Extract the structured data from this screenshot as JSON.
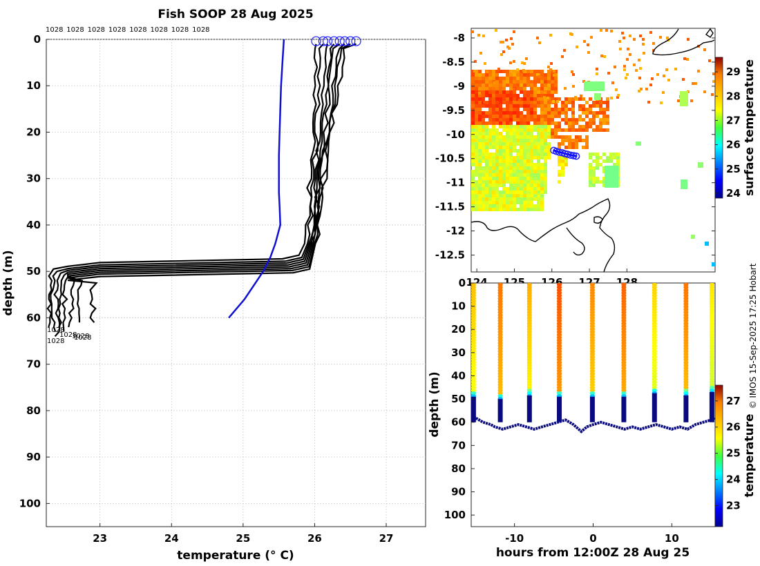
{
  "chart_data": [
    {
      "type": "line",
      "title": "Fish SOOP 28 Aug 2025",
      "xlabel": "temperature (° C)",
      "ylabel": "depth (m)",
      "xlim": [
        22.25,
        27.55
      ],
      "ylim": [
        105,
        0
      ],
      "xticks": [
        23,
        24,
        25,
        26,
        27
      ],
      "yticks": [
        0,
        10,
        20,
        30,
        40,
        50,
        60,
        70,
        80,
        90,
        100
      ],
      "id_label": "1028",
      "id_label_count": 8,
      "bottom_labels": [
        "1028",
        "1028",
        "1028",
        "1028",
        "1028"
      ],
      "climatology_color": "#1010d0",
      "profile_color": "#000000",
      "climatology": {
        "name": "climatology",
        "points": [
          [
            25.57,
            0
          ],
          [
            25.55,
            5
          ],
          [
            25.53,
            10
          ],
          [
            25.52,
            15
          ],
          [
            25.51,
            20
          ],
          [
            25.5,
            25
          ],
          [
            25.5,
            30
          ],
          [
            25.5,
            33
          ],
          [
            25.51,
            36
          ],
          [
            25.52,
            40
          ],
          [
            25.45,
            44
          ],
          [
            25.38,
            47
          ],
          [
            25.28,
            50
          ],
          [
            25.15,
            53
          ],
          [
            25.02,
            56
          ],
          [
            24.8,
            60
          ]
        ]
      },
      "profiles": [
        {
          "name": "p1",
          "surface": 26.02,
          "top": 26.02,
          "t20": 25.98,
          "t40": 25.9,
          "bend": 47.3,
          "bot": 22.3,
          "end": 62
        },
        {
          "name": "p2",
          "surface": 26.12,
          "top": 26.1,
          "t20": 26.02,
          "t40": 25.94,
          "bend": 47.8,
          "bot": 22.35,
          "end": 63
        },
        {
          "name": "p3",
          "surface": 26.18,
          "top": 26.16,
          "t20": 26.06,
          "t40": 25.96,
          "bend": 48.2,
          "bot": 22.4,
          "end": 64
        },
        {
          "name": "p4",
          "surface": 26.27,
          "top": 26.24,
          "t20": 26.1,
          "t40": 25.98,
          "bend": 48.6,
          "bot": 22.45,
          "end": 62.5
        },
        {
          "name": "p5",
          "surface": 26.35,
          "top": 26.3,
          "t20": 26.14,
          "t40": 26.0,
          "bend": 49.0,
          "bot": 22.5,
          "end": 63.5
        },
        {
          "name": "p6",
          "surface": 26.42,
          "top": 26.35,
          "t20": 26.18,
          "t40": 26.02,
          "bend": 49.4,
          "bot": 22.6,
          "end": 62
        },
        {
          "name": "p7",
          "surface": 26.5,
          "top": 26.4,
          "t20": 26.2,
          "t40": 26.04,
          "bend": 49.8,
          "bot": 22.7,
          "end": 61.5
        },
        {
          "name": "p8",
          "surface": 26.58,
          "top": 26.45,
          "t20": 26.22,
          "t40": 26.05,
          "bend": 50.3,
          "bot": 22.9,
          "end": 61
        }
      ]
    },
    {
      "type": "heatmap",
      "title": "",
      "xlim": [
        123.85,
        130.35
      ],
      "ylim": [
        -12.85,
        -7.8
      ],
      "xticks": [
        124,
        125,
        126,
        127,
        128
      ],
      "yticks": [
        -8,
        -8.5,
        -9,
        -9.5,
        -10,
        -10.5,
        -11,
        -11.5,
        -12,
        -12.5
      ],
      "colorbar_label": "surface temperature",
      "colorbar_range": [
        23.8,
        29.6
      ],
      "colorbar_ticks": [
        24,
        25,
        26,
        27,
        28,
        29
      ],
      "track": [
        [
          126.05,
          -10.33
        ],
        [
          126.12,
          -10.35
        ],
        [
          126.2,
          -10.37
        ],
        [
          126.28,
          -10.38
        ],
        [
          126.35,
          -10.4
        ],
        [
          126.42,
          -10.41
        ],
        [
          126.5,
          -10.43
        ],
        [
          126.58,
          -10.44
        ],
        [
          126.65,
          -10.45
        ]
      ]
    },
    {
      "type": "scatter",
      "title": "",
      "xlabel": "hours from 12:00Z 28 Aug 25",
      "ylabel": "depth (m)",
      "xlim": [
        -15.5,
        15.5
      ],
      "ylim": [
        105,
        0
      ],
      "xticks": [
        -10,
        0,
        10
      ],
      "yticks": [
        0,
        10,
        20,
        30,
        40,
        50,
        60,
        70,
        80,
        90,
        100
      ],
      "colorbar_label": "temperature",
      "colorbar_range": [
        22.2,
        27.6
      ],
      "colorbar_ticks": [
        23,
        24,
        25,
        26,
        27
      ],
      "casts": [
        -15.2,
        -11.8,
        -8.1,
        -4.3,
        -0.1,
        3.9,
        7.8,
        11.8,
        15.1
      ],
      "cast_top_temps": [
        25.9,
        26.3,
        26.0,
        26.5,
        26.2,
        26.4,
        25.8,
        26.3,
        25.7
      ],
      "cast_bottom_depth": [
        49,
        50,
        48.5,
        49,
        49,
        49,
        47.5,
        48.5,
        47
      ],
      "bottom_line": [
        [
          -15.5,
          57
        ],
        [
          -15,
          58
        ],
        [
          -14,
          60
        ],
        [
          -13,
          61
        ],
        [
          -12.5,
          62
        ],
        [
          -11.5,
          63
        ],
        [
          -10.5,
          62
        ],
        [
          -9.5,
          61
        ],
        [
          -8.5,
          62
        ],
        [
          -7.5,
          63
        ],
        [
          -6.5,
          62
        ],
        [
          -5.5,
          61
        ],
        [
          -4.5,
          60
        ],
        [
          -3.5,
          59
        ],
        [
          -2.5,
          61
        ],
        [
          -1.5,
          64
        ],
        [
          -0.8,
          62
        ],
        [
          0,
          61
        ],
        [
          1,
          60
        ],
        [
          2,
          61
        ],
        [
          3,
          62
        ],
        [
          4,
          63
        ],
        [
          5,
          62
        ],
        [
          6,
          63
        ],
        [
          7,
          62
        ],
        [
          8,
          61
        ],
        [
          9,
          62
        ],
        [
          10,
          63
        ],
        [
          11,
          62
        ],
        [
          12,
          63
        ],
        [
          13,
          61
        ],
        [
          14,
          60
        ],
        [
          15,
          59
        ],
        [
          15.5,
          58
        ]
      ]
    }
  ],
  "credit": "© IMOS 15-Sep-2025 17:25 Hobart"
}
